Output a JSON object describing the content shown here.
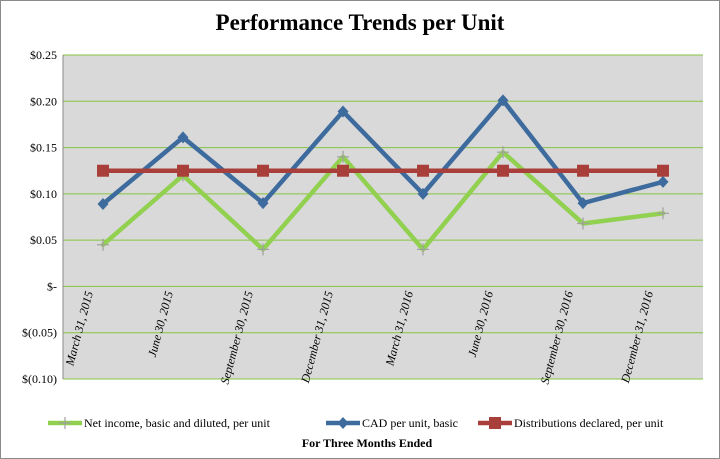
{
  "chart_data": {
    "type": "line",
    "title": "Performance Trends per Unit",
    "xlabel": "For Three Months Ended",
    "ylabel": "",
    "ylim": [
      -0.1,
      0.25
    ],
    "yticks": [
      0.25,
      0.2,
      0.15,
      0.1,
      0.05,
      0,
      -0.05,
      -0.1
    ],
    "ytick_labels": [
      "$0.25",
      "$0.20",
      "$0.15",
      "$0.10",
      "$0.05",
      "$-",
      "$(0.05)",
      "$(0.10)"
    ],
    "grid": true,
    "legend_position": "bottom",
    "categories": [
      "March 31, 2015",
      "June 30, 2015",
      "September 30, 2015",
      "December 31, 2015",
      "March 31, 2016",
      "June 30, 2016",
      "September 30, 2016",
      "December 31, 2016"
    ],
    "series": [
      {
        "name": "Net income, basic and diluted, per unit",
        "color": "#92d050",
        "marker": "plus",
        "values": [
          0.045,
          0.12,
          0.04,
          0.14,
          0.04,
          0.145,
          0.068,
          0.079
        ]
      },
      {
        "name": "CAD per unit, basic",
        "color": "#3e6b9e",
        "marker": "diamond",
        "values": [
          0.089,
          0.161,
          0.09,
          0.189,
          0.1,
          0.201,
          0.09,
          0.113
        ]
      },
      {
        "name": "Distributions declared, per unit",
        "color": "#a83f3a",
        "marker": "square",
        "values": [
          0.125,
          0.125,
          0.125,
          0.125,
          0.125,
          0.125,
          0.125,
          0.125
        ]
      }
    ]
  }
}
